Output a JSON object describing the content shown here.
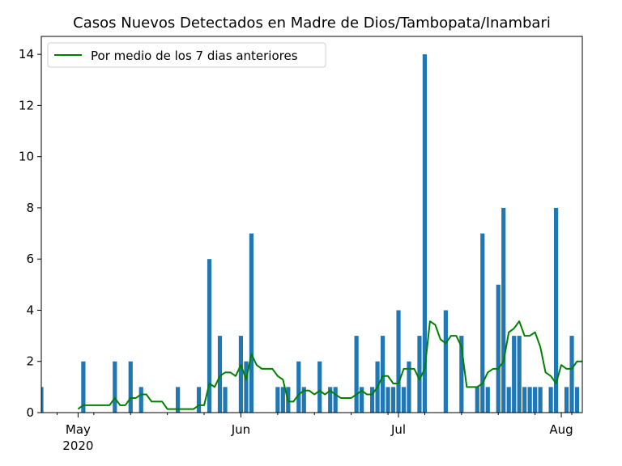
{
  "chart_data": {
    "type": "bar",
    "title": "Casos Nuevos Detectados en Madre de Dios/Tambopata/Inambari",
    "xlabel": "",
    "ylabel": "",
    "ylim": [
      0,
      14.7
    ],
    "xlim": [
      "2020-04-24",
      "2020-08-05"
    ],
    "yticks": [
      0,
      2,
      4,
      6,
      8,
      10,
      12,
      14
    ],
    "xticks": [
      {
        "date": "2020-05-01",
        "label": "May",
        "sublabel": "2020"
      },
      {
        "date": "2020-06-01",
        "label": "Jun",
        "sublabel": ""
      },
      {
        "date": "2020-07-01",
        "label": "Jul",
        "sublabel": ""
      },
      {
        "date": "2020-08-01",
        "label": "Aug",
        "sublabel": ""
      }
    ],
    "legend": {
      "placement": "top-left",
      "entries": [
        "Por medio de los 7 dias anteriores"
      ]
    },
    "colors": {
      "bars": "#1f77b4",
      "line": "#008000"
    },
    "series": [
      {
        "type": "bar",
        "points": [
          [
            "2020-04-24",
            1
          ],
          [
            "2020-05-02",
            2
          ],
          [
            "2020-05-08",
            2
          ],
          [
            "2020-05-11",
            2
          ],
          [
            "2020-05-13",
            1
          ],
          [
            "2020-05-20",
            1
          ],
          [
            "2020-05-24",
            1
          ],
          [
            "2020-05-26",
            6
          ],
          [
            "2020-05-28",
            3
          ],
          [
            "2020-05-29",
            1
          ],
          [
            "2020-06-01",
            3
          ],
          [
            "2020-06-02",
            2
          ],
          [
            "2020-06-03",
            7
          ],
          [
            "2020-06-08",
            1
          ],
          [
            "2020-06-09",
            1
          ],
          [
            "2020-06-10",
            1
          ],
          [
            "2020-06-12",
            2
          ],
          [
            "2020-06-13",
            1
          ],
          [
            "2020-06-16",
            2
          ],
          [
            "2020-06-18",
            1
          ],
          [
            "2020-06-19",
            1
          ],
          [
            "2020-06-23",
            3
          ],
          [
            "2020-06-24",
            1
          ],
          [
            "2020-06-26",
            1
          ],
          [
            "2020-06-27",
            2
          ],
          [
            "2020-06-28",
            3
          ],
          [
            "2020-06-29",
            1
          ],
          [
            "2020-06-30",
            1
          ],
          [
            "2020-07-01",
            4
          ],
          [
            "2020-07-02",
            1
          ],
          [
            "2020-07-03",
            2
          ],
          [
            "2020-07-05",
            3
          ],
          [
            "2020-07-06",
            14
          ],
          [
            "2020-07-10",
            4
          ],
          [
            "2020-07-13",
            3
          ],
          [
            "2020-07-16",
            1
          ],
          [
            "2020-07-17",
            7
          ],
          [
            "2020-07-18",
            1
          ],
          [
            "2020-07-20",
            5
          ],
          [
            "2020-07-21",
            8
          ],
          [
            "2020-07-22",
            1
          ],
          [
            "2020-07-23",
            3
          ],
          [
            "2020-07-24",
            3
          ],
          [
            "2020-07-25",
            1
          ],
          [
            "2020-07-26",
            1
          ],
          [
            "2020-07-27",
            1
          ],
          [
            "2020-07-28",
            1
          ],
          [
            "2020-07-30",
            1
          ],
          [
            "2020-07-31",
            8
          ],
          [
            "2020-08-02",
            1
          ],
          [
            "2020-08-03",
            3
          ],
          [
            "2020-08-04",
            1
          ]
        ]
      },
      {
        "type": "line",
        "name": "Por medio de los 7 dias anteriores",
        "points": [
          [
            "2020-05-01",
            0.14
          ],
          [
            "2020-05-02",
            0.29
          ],
          [
            "2020-05-03",
            0.29
          ],
          [
            "2020-05-04",
            0.29
          ],
          [
            "2020-05-05",
            0.29
          ],
          [
            "2020-05-06",
            0.29
          ],
          [
            "2020-05-07",
            0.29
          ],
          [
            "2020-05-08",
            0.57
          ],
          [
            "2020-05-09",
            0.29
          ],
          [
            "2020-05-10",
            0.29
          ],
          [
            "2020-05-11",
            0.57
          ],
          [
            "2020-05-12",
            0.57
          ],
          [
            "2020-05-13",
            0.71
          ],
          [
            "2020-05-14",
            0.71
          ],
          [
            "2020-05-15",
            0.43
          ],
          [
            "2020-05-16",
            0.43
          ],
          [
            "2020-05-17",
            0.43
          ],
          [
            "2020-05-18",
            0.14
          ],
          [
            "2020-05-19",
            0.14
          ],
          [
            "2020-05-20",
            0.14
          ],
          [
            "2020-05-21",
            0.14
          ],
          [
            "2020-05-22",
            0.14
          ],
          [
            "2020-05-23",
            0.14
          ],
          [
            "2020-05-24",
            0.29
          ],
          [
            "2020-05-25",
            0.29
          ],
          [
            "2020-05-26",
            1.14
          ],
          [
            "2020-05-27",
            1.0
          ],
          [
            "2020-05-28",
            1.43
          ],
          [
            "2020-05-29",
            1.57
          ],
          [
            "2020-05-30",
            1.57
          ],
          [
            "2020-05-31",
            1.43
          ],
          [
            "2020-06-01",
            1.86
          ],
          [
            "2020-06-02",
            1.29
          ],
          [
            "2020-06-03",
            2.29
          ],
          [
            "2020-06-04",
            1.86
          ],
          [
            "2020-06-05",
            1.71
          ],
          [
            "2020-06-06",
            1.71
          ],
          [
            "2020-06-07",
            1.71
          ],
          [
            "2020-06-08",
            1.43
          ],
          [
            "2020-06-09",
            1.29
          ],
          [
            "2020-06-10",
            0.43
          ],
          [
            "2020-06-11",
            0.43
          ],
          [
            "2020-06-12",
            0.71
          ],
          [
            "2020-06-13",
            0.86
          ],
          [
            "2020-06-14",
            0.86
          ],
          [
            "2020-06-15",
            0.71
          ],
          [
            "2020-06-16",
            0.86
          ],
          [
            "2020-06-17",
            0.71
          ],
          [
            "2020-06-18",
            0.86
          ],
          [
            "2020-06-19",
            0.71
          ],
          [
            "2020-06-20",
            0.57
          ],
          [
            "2020-06-21",
            0.57
          ],
          [
            "2020-06-22",
            0.57
          ],
          [
            "2020-06-23",
            0.71
          ],
          [
            "2020-06-24",
            0.86
          ],
          [
            "2020-06-25",
            0.71
          ],
          [
            "2020-06-26",
            0.71
          ],
          [
            "2020-06-27",
            1.0
          ],
          [
            "2020-06-28",
            1.43
          ],
          [
            "2020-06-29",
            1.43
          ],
          [
            "2020-06-30",
            1.14
          ],
          [
            "2020-07-01",
            1.14
          ],
          [
            "2020-07-02",
            1.71
          ],
          [
            "2020-07-03",
            1.71
          ],
          [
            "2020-07-04",
            1.71
          ],
          [
            "2020-07-05",
            1.29
          ],
          [
            "2020-07-06",
            1.71
          ],
          [
            "2020-07-07",
            3.57
          ],
          [
            "2020-07-08",
            3.43
          ],
          [
            "2020-07-09",
            2.86
          ],
          [
            "2020-07-10",
            2.71
          ],
          [
            "2020-07-11",
            3.0
          ],
          [
            "2020-07-12",
            3.0
          ],
          [
            "2020-07-13",
            2.57
          ],
          [
            "2020-07-14",
            1.0
          ],
          [
            "2020-07-15",
            1.0
          ],
          [
            "2020-07-16",
            1.0
          ],
          [
            "2020-07-17",
            1.14
          ],
          [
            "2020-07-18",
            1.57
          ],
          [
            "2020-07-19",
            1.71
          ],
          [
            "2020-07-20",
            1.71
          ],
          [
            "2020-07-21",
            2.0
          ],
          [
            "2020-07-22",
            3.14
          ],
          [
            "2020-07-23",
            3.29
          ],
          [
            "2020-07-24",
            3.57
          ],
          [
            "2020-07-25",
            3.0
          ],
          [
            "2020-07-26",
            3.0
          ],
          [
            "2020-07-27",
            3.14
          ],
          [
            "2020-07-28",
            2.57
          ],
          [
            "2020-07-29",
            1.57
          ],
          [
            "2020-07-30",
            1.43
          ],
          [
            "2020-07-31",
            1.14
          ],
          [
            "2020-08-01",
            1.86
          ],
          [
            "2020-08-02",
            1.71
          ],
          [
            "2020-08-03",
            1.71
          ],
          [
            "2020-08-04",
            2.0
          ],
          [
            "2020-08-05",
            2.0
          ]
        ]
      }
    ]
  }
}
